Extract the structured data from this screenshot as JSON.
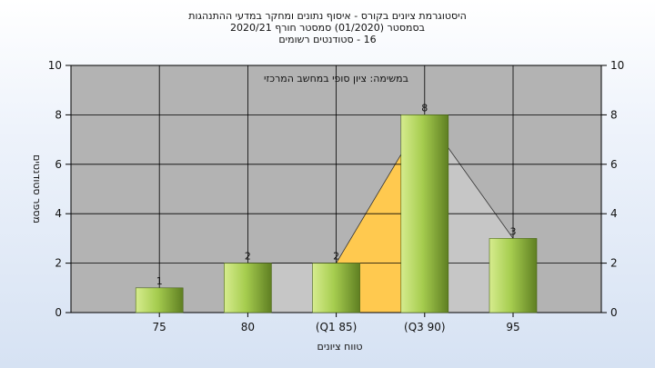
{
  "title_lines": [
    "היסטוגרמת ציונים בקורס - איסוף נתונים ומחקר במדעי ההתנהגות",
    "בסמסטר (01/2020) סמסטר חורף 2020/21",
    "16 - סטודנטים רשומים"
  ],
  "chart_data": {
    "type": "bar",
    "categories": [
      "75",
      "80",
      "(Q1 85)",
      "(Q3 90)",
      "95"
    ],
    "values": [
      1,
      2,
      2,
      8,
      3
    ],
    "data_labels": [
      "1",
      "2",
      "2",
      "8",
      "3"
    ],
    "xlabel": "טווח ציונים",
    "ylabel": "מספר סטודנטים",
    "ylim": [
      0,
      10
    ],
    "yticks": [
      0,
      2,
      4,
      6,
      8,
      10
    ],
    "grid": true,
    "annotation": "במשימה: ציון סופי במחשב המרכזי",
    "colors": {
      "plot_bg": "#b3b3b3",
      "bar_light": "#d6ec8e",
      "bar_mid": "#a6cd4f",
      "bar_dark": "#5f7f22",
      "area_orange": "#ffc94f",
      "area_gray": "#c6c6c6",
      "grid": "#000000"
    }
  }
}
